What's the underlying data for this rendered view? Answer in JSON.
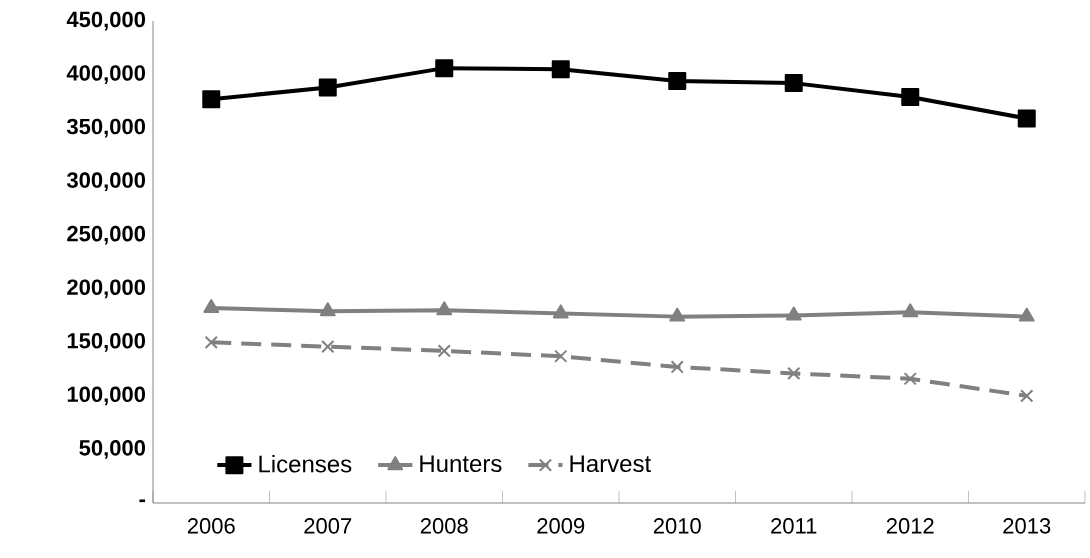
{
  "chart_data": {
    "type": "line",
    "categories": [
      "2006",
      "2007",
      "2008",
      "2009",
      "2010",
      "2011",
      "2012",
      "2013"
    ],
    "series": [
      {
        "name": "Licenses",
        "color": "#000000",
        "marker": "square",
        "line_style": "solid",
        "values": [
          377000,
          388000,
          406000,
          405000,
          394000,
          392000,
          379000,
          359000
        ]
      },
      {
        "name": "Hunters",
        "color": "#808080",
        "marker": "triangle",
        "line_style": "solid",
        "values": [
          182000,
          179000,
          180000,
          177000,
          174000,
          175000,
          178000,
          174000
        ]
      },
      {
        "name": "Harvest",
        "color": "#808080",
        "marker": "cross",
        "line_style": "dashed",
        "values": [
          150000,
          146000,
          142000,
          137000,
          127000,
          121000,
          116000,
          100000
        ]
      }
    ],
    "ylim": [
      0,
      450000
    ],
    "yticks": [
      {
        "value": 0,
        "label": "-"
      },
      {
        "value": 50000,
        "label": "50,000"
      },
      {
        "value": 100000,
        "label": "100,000"
      },
      {
        "value": 150000,
        "label": "150,000"
      },
      {
        "value": 200000,
        "label": "200,000"
      },
      {
        "value": 250000,
        "label": "250,000"
      },
      {
        "value": 300000,
        "label": "300,000"
      },
      {
        "value": 350000,
        "label": "350,000"
      },
      {
        "value": 400000,
        "label": "400,000"
      },
      {
        "value": 450000,
        "label": "450,000"
      }
    ],
    "grid": false,
    "legend": "bottom left"
  }
}
